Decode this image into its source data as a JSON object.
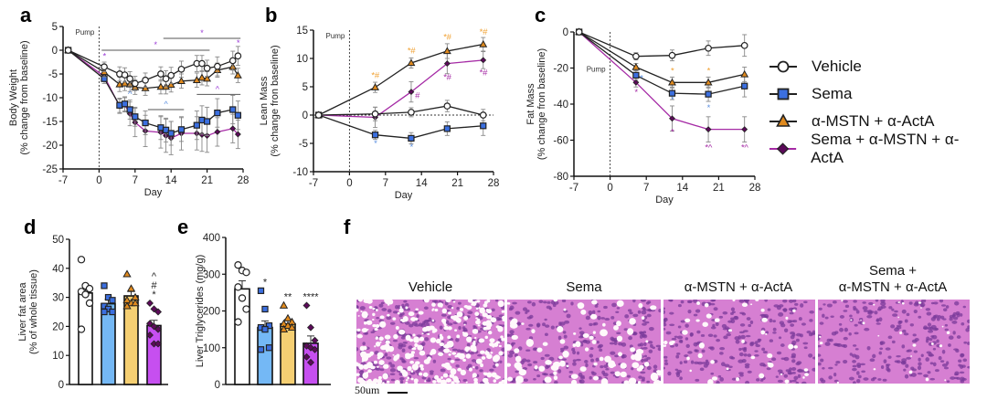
{
  "panels": {
    "a": "a",
    "b": "b",
    "c": "c",
    "d": "d",
    "e": "e",
    "f": "f"
  },
  "legend": [
    {
      "name": "Vehicle",
      "marker": "circle-open",
      "color": "#ffffff",
      "line": "#222222"
    },
    {
      "name": "Sema",
      "marker": "square",
      "color": "#3b6fe0",
      "line": "#222222"
    },
    {
      "name": "α-MSTN + α-ActA",
      "marker": "triangle",
      "color": "#e08a1e",
      "line": "#222222"
    },
    {
      "name": "Sema + α-MSTN + α-ActA",
      "marker": "diamond",
      "color": "#5c0a5a",
      "line": "#a52aa5"
    }
  ],
  "colors": {
    "vehicle_bar": "#ffffff",
    "sema_bar": "#74b8f5",
    "mstn_bar": "#f5cf72",
    "combo_bar": "#c64ff0",
    "sig_purple": "#9b3bd6",
    "sig_blue": "#5b8fe0",
    "sig_orange": "#f0a030",
    "sig_combo": "#a52aa5",
    "histo_bg": "#d47ad0"
  },
  "chart_data": [
    {
      "id": "a",
      "type": "line",
      "title": "",
      "xlabel": "Day",
      "ylabel": "Body Weight\n(% change from baseline)",
      "xlim": [
        -7,
        28
      ],
      "ylim": [
        -25,
        5
      ],
      "xticks": [
        -7,
        0,
        7,
        14,
        21,
        28
      ],
      "yticks": [
        5,
        0,
        -5,
        -10,
        -15,
        -20,
        -25
      ],
      "annotation": "Pump",
      "vline_x": 0,
      "series": [
        {
          "name": "Vehicle",
          "x": [
            -6,
            1,
            4,
            5,
            6,
            7,
            9,
            12,
            13,
            14,
            16,
            19,
            20,
            21,
            23,
            26,
            27
          ],
          "y": [
            0,
            -3.5,
            -5,
            -5.2,
            -6,
            -7,
            -6.3,
            -5,
            -6,
            -5.3,
            -4,
            -2.8,
            -2.8,
            -3.8,
            -3.4,
            -2.2,
            -1.2
          ],
          "err": [
            0,
            1,
            1.5,
            1.5,
            1.5,
            1.5,
            1.5,
            1.5,
            1.7,
            1.7,
            1.7,
            1.7,
            1.7,
            1.7,
            2,
            2,
            2
          ]
        },
        {
          "name": "Sema",
          "x": [
            -6,
            1,
            4,
            5,
            6,
            7,
            9,
            12,
            13,
            14,
            16,
            19,
            20,
            21,
            23,
            26,
            27
          ],
          "y": [
            0,
            -6,
            -11.6,
            -11.3,
            -12.5,
            -14,
            -15.3,
            -16.3,
            -16.8,
            -17.5,
            -16.7,
            -15.8,
            -14.7,
            -15,
            -13.2,
            -12.5,
            -13.7
          ],
          "err": [
            0,
            1,
            1.5,
            1.5,
            2,
            2,
            2.5,
            2.5,
            2.5,
            2.5,
            2.5,
            3,
            3,
            3,
            3,
            3,
            3
          ]
        },
        {
          "name": "α-MSTN + α-ActA",
          "x": [
            -6,
            1,
            4,
            5,
            6,
            7,
            9,
            12,
            13,
            14,
            16,
            19,
            20,
            21,
            23,
            26,
            27
          ],
          "y": [
            0,
            -4.6,
            -7.2,
            -7,
            -7.2,
            -7.8,
            -8,
            -7.7,
            -7.7,
            -7.3,
            -6.5,
            -6.3,
            -5.8,
            -6,
            -4.2,
            -3.5,
            -5.3
          ],
          "err": [
            0,
            1,
            1.5,
            1.5,
            1.5,
            1.5,
            1.5,
            1.5,
            1.5,
            1.5,
            1.5,
            1.5,
            1.5,
            1.5,
            1.5,
            1.5,
            1.5
          ]
        },
        {
          "name": "Sema + α-MSTN + α-ActA",
          "x": [
            -6,
            1,
            4,
            5,
            6,
            7,
            9,
            12,
            13,
            14,
            16,
            19,
            20,
            21,
            23,
            26,
            27
          ],
          "y": [
            0,
            -5.5,
            -11.8,
            -11.5,
            -13.4,
            -15.2,
            -17,
            -17.3,
            -18,
            -18.5,
            -17.5,
            -17.5,
            -17.8,
            -18,
            -17.2,
            -16.5,
            -17.7
          ],
          "err": [
            0,
            1,
            1.5,
            1.5,
            2.5,
            3,
            3.3,
            3.3,
            3.5,
            3.5,
            3.5,
            3.5,
            3.5,
            3.5,
            3,
            3,
            3
          ]
        }
      ],
      "sig_bars": [
        {
          "x1": 0.5,
          "x2": 21.5,
          "y": 0,
          "label": "*",
          "label_x": 11,
          "color": "purple"
        },
        {
          "x1": 12.5,
          "x2": 27.5,
          "y": 2.5,
          "label": "*",
          "label_x": 20,
          "color": "purple"
        },
        {
          "x1": 9.5,
          "x2": 16.5,
          "y": -12.5,
          "label": "^",
          "label_x": 13,
          "color": "blue"
        },
        {
          "x1": 19,
          "x2": 27.5,
          "y": -9.3,
          "label": "^",
          "label_x": 23,
          "color": "purple"
        }
      ],
      "sig_marks": [
        {
          "x": 1,
          "y": -1.8,
          "label": "*",
          "color": "purple"
        },
        {
          "x": 27,
          "y": 1,
          "label": "*",
          "color": "purple"
        },
        {
          "x": 6,
          "y": -9.8,
          "label": "^",
          "color": "blue"
        }
      ]
    },
    {
      "id": "b",
      "type": "line",
      "title": "",
      "xlabel": "Day",
      "ylabel": "Lean Mass\n(% change fron baseline)",
      "xlim": [
        -7,
        28
      ],
      "ylim": [
        -10,
        15
      ],
      "xticks": [
        -7,
        0,
        7,
        14,
        21,
        28
      ],
      "yticks": [
        15,
        10,
        5,
        0,
        -5,
        -10
      ],
      "annotation": "Pump",
      "vline_x": 0,
      "hline_y": 0,
      "series": [
        {
          "name": "Vehicle",
          "x": [
            -6,
            5,
            12,
            19,
            26
          ],
          "y": [
            0,
            0.2,
            0.5,
            1.6,
            0
          ],
          "err": [
            0,
            1.2,
            0.8,
            1,
            1
          ]
        },
        {
          "name": "Sema",
          "x": [
            -6,
            5,
            12,
            19,
            26
          ],
          "y": [
            0,
            -3.5,
            -4.1,
            -2.4,
            -1.9
          ],
          "err": [
            0,
            0.8,
            1,
            1.2,
            1.7
          ]
        },
        {
          "name": "α-MSTN + α-ActA",
          "x": [
            -6,
            5,
            12,
            19,
            26
          ],
          "y": [
            0,
            4.9,
            9.2,
            11.3,
            12.5
          ],
          "err": [
            0,
            0.9,
            0.9,
            1.3,
            1.2
          ]
        },
        {
          "name": "Sema + α-MSTN + α-ActA",
          "x": [
            -6,
            5,
            12,
            19,
            26
          ],
          "y": [
            0,
            -0.4,
            4.1,
            9.1,
            9.7
          ],
          "err": [
            0,
            1.8,
            1.8,
            1.8,
            1.5
          ]
        }
      ],
      "sig_marks": [
        {
          "x": 5,
          "y": 6.5,
          "label": "*#",
          "color": "orange"
        },
        {
          "x": 12,
          "y": 10.9,
          "label": "*#",
          "color": "orange"
        },
        {
          "x": 19,
          "y": 13.3,
          "label": "*#",
          "color": "orange"
        },
        {
          "x": 26,
          "y": 14.2,
          "label": "*#",
          "color": "orange"
        },
        {
          "x": 13.2,
          "y": 3,
          "label": "#",
          "color": "combo"
        },
        {
          "x": 19,
          "y": 6.2,
          "label": "*#",
          "color": "combo"
        },
        {
          "x": 26,
          "y": 7,
          "label": "*#",
          "color": "combo"
        },
        {
          "x": 5,
          "y": -5.5,
          "label": "*",
          "color": "blue"
        },
        {
          "x": 12,
          "y": -6.1,
          "label": "*",
          "color": "blue"
        }
      ]
    },
    {
      "id": "c",
      "type": "line",
      "title": "",
      "xlabel": "Day",
      "ylabel": "Fat Mass\n(% change fron baseline)",
      "xlim": [
        -7,
        28
      ],
      "ylim": [
        -80,
        0
      ],
      "xticks": [
        -7,
        0,
        7,
        14,
        21,
        28
      ],
      "yticks": [
        0,
        -20,
        -40,
        -60,
        -80
      ],
      "annotation": "Pump",
      "vline_x": 0,
      "series": [
        {
          "name": "Vehicle",
          "x": [
            -6,
            5,
            12,
            19,
            26
          ],
          "y": [
            0,
            -13.5,
            -13,
            -9,
            -7.5
          ],
          "err": [
            0,
            2,
            3,
            4,
            6
          ]
        },
        {
          "name": "Sema",
          "x": [
            -6,
            5,
            12,
            19,
            26
          ],
          "y": [
            0,
            -24,
            -34,
            -34.5,
            -30
          ],
          "err": [
            0,
            2.5,
            3.5,
            4,
            6
          ]
        },
        {
          "name": "α-MSTN + α-ActA",
          "x": [
            -6,
            5,
            12,
            19,
            26
          ],
          "y": [
            0,
            -19.5,
            -28,
            -28,
            -23.5
          ],
          "err": [
            0,
            2,
            3,
            3,
            4
          ]
        },
        {
          "name": "Sema + α-MSTN + α-ActA",
          "x": [
            -6,
            5,
            12,
            19,
            26
          ],
          "y": [
            0,
            -28,
            -48,
            -54,
            -54
          ],
          "err": [
            0,
            2.5,
            7,
            7,
            7
          ]
        }
      ],
      "sig_marks": [
        {
          "x": 12,
          "y": -23,
          "label": "*",
          "color": "orange"
        },
        {
          "x": 19,
          "y": -23,
          "label": "*",
          "color": "orange"
        },
        {
          "x": 6,
          "y": -27,
          "label": "*",
          "color": "blue"
        },
        {
          "x": 12,
          "y": -39,
          "label": "*",
          "color": "blue"
        },
        {
          "x": 19,
          "y": -43.5,
          "label": "*",
          "color": "blue"
        },
        {
          "x": 5,
          "y": -35,
          "label": "*",
          "color": "combo"
        },
        {
          "x": 12,
          "y": -57,
          "label": "*",
          "color": "combo"
        },
        {
          "x": 19,
          "y": -65.5,
          "label": "*^",
          "color": "combo"
        },
        {
          "x": 26,
          "y": -65.5,
          "label": "*^",
          "color": "combo"
        }
      ]
    },
    {
      "id": "d",
      "type": "bar",
      "title": "",
      "xlabel": "",
      "ylabel": "Liver fat area\n(% of whole tissue)",
      "ylim": [
        0,
        50
      ],
      "yticks": [
        0,
        10,
        20,
        30,
        40,
        50
      ],
      "categories": [
        "Vehicle",
        "Sema",
        "α-MSTN + α-ActA",
        "Sema + α-MSTN + α-ActA"
      ],
      "values": [
        31.5,
        27.8,
        30.5,
        20.3
      ],
      "err": [
        3,
        1.5,
        1.5,
        1.8
      ],
      "points": [
        [
          43,
          34,
          33,
          32,
          31,
          28,
          19
        ],
        [
          34,
          30,
          29,
          27,
          26,
          25,
          25
        ],
        [
          38,
          33,
          30,
          29,
          28,
          28,
          27
        ],
        [
          28,
          26,
          25,
          21,
          20,
          19,
          17,
          14,
          14
        ]
      ],
      "sig_labels": [
        "",
        "",
        "",
        "^\n#\n*"
      ]
    },
    {
      "id": "e",
      "type": "bar",
      "title": "",
      "xlabel": "",
      "ylabel": "Liver Triglycerides (mg/g)",
      "ylim": [
        0,
        400
      ],
      "yticks": [
        0,
        100,
        200,
        300,
        400
      ],
      "categories": [
        "Vehicle",
        "Sema",
        "α-MSTN + α-ActA",
        "Sema + α-MSTN + α-ActA"
      ],
      "values": [
        260,
        155,
        165,
        112
      ],
      "err": [
        22,
        18,
        12,
        20
      ],
      "points": [
        [
          325,
          310,
          305,
          265,
          235,
          205,
          170
        ],
        [
          255,
          205,
          160,
          155,
          150,
          100,
          95
        ],
        [
          215,
          180,
          170,
          165,
          160,
          155,
          150
        ],
        [
          215,
          155,
          120,
          105,
          100,
          95,
          75,
          60
        ]
      ],
      "sig_labels": [
        "",
        "*",
        "**",
        "****"
      ]
    }
  ],
  "histology": {
    "labels": [
      "Vehicle",
      "Sema",
      "α-MSTN + α-ActA",
      "Sema +\nα-MSTN + α-ActA"
    ],
    "scale_bar": "50um"
  }
}
